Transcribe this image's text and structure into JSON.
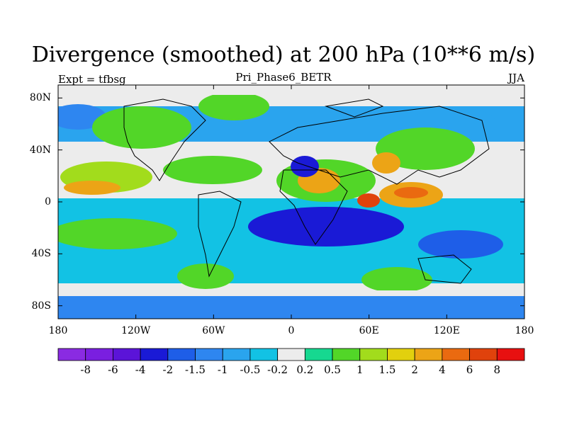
{
  "title": "Divergence (smoothed) at 200 hPa (10**6 m/s)",
  "left_label": "Expt = tfbsg",
  "center_label": "Pri_Phase6_BETR",
  "right_label": "JJA",
  "map": {
    "projection": "cylindrical-equidistant",
    "lon_range": [
      -180,
      180
    ],
    "lat_range": [
      -90,
      90
    ],
    "lat_ticks": [
      "80N",
      "40N",
      "0",
      "40S",
      "80S"
    ],
    "lon_ticks": [
      "180",
      "120W",
      "60W",
      "0",
      "60E",
      "120E",
      "180"
    ]
  },
  "colorbar": {
    "labels": [
      "-8",
      "-6",
      "-4",
      "-2",
      "-1.5",
      "-1",
      "-0.5",
      "-0.2",
      "0.2",
      "0.5",
      "1",
      "1.5",
      "2",
      "4",
      "6",
      "8"
    ],
    "colors": [
      "#8a2be2",
      "#7a1fe0",
      "#5b14d8",
      "#1a1ad6",
      "#1e5ee8",
      "#2e86f0",
      "#2aa4ee",
      "#12c2e4",
      "#ececec",
      "#16d890",
      "#52d628",
      "#a2dc1c",
      "#e2d00e",
      "#eca416",
      "#ea6a10",
      "#e0420c",
      "#e81010"
    ]
  },
  "palette": {
    "ocean_bg": "#12c2e4",
    "strong_neg": "#1a1ad6",
    "neutral": "#ececec",
    "coast": "#000000"
  }
}
